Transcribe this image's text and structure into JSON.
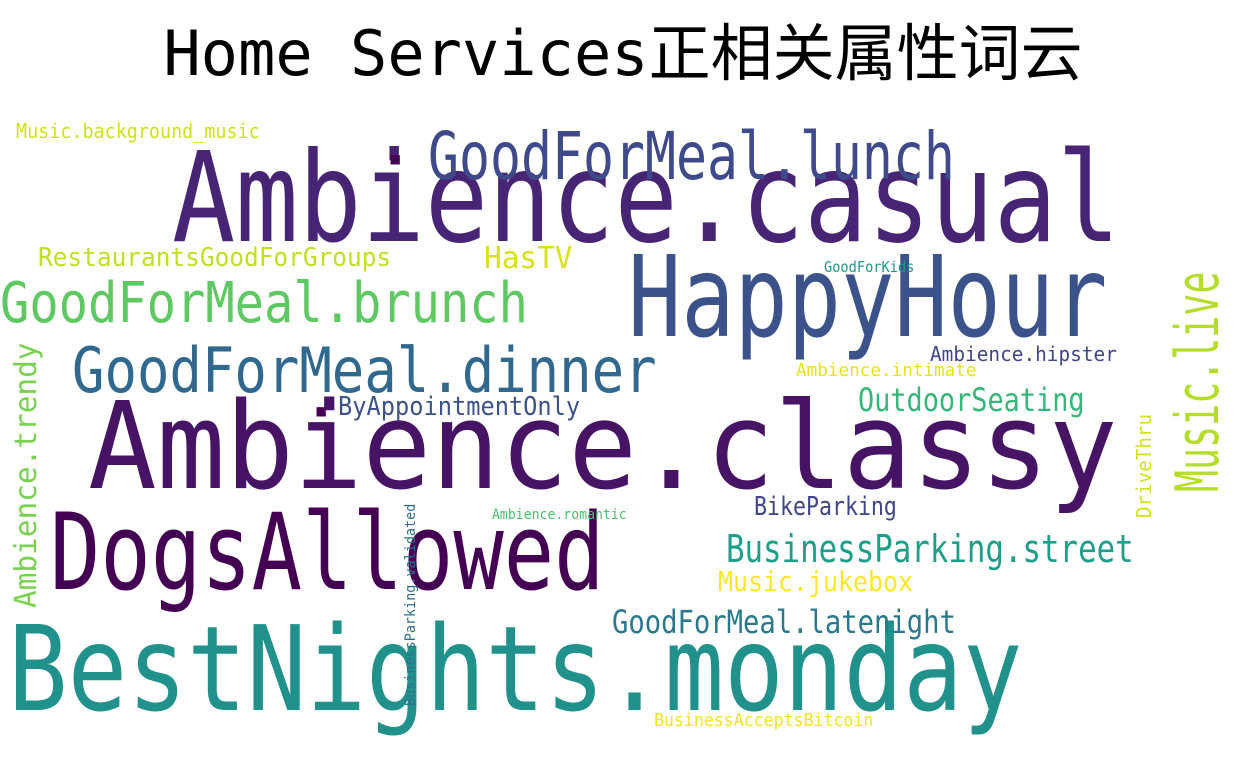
{
  "title": "Home Services正相关属性词云",
  "words": [
    {
      "text": "Ambience.casual",
      "color": "#482475",
      "vertical": false
    },
    {
      "text": "Ambience.classy",
      "color": "#471365",
      "vertical": false
    },
    {
      "text": "BestNights.monday",
      "color": "#21918c",
      "vertical": false
    },
    {
      "text": "HappyHour",
      "color": "#3b528b",
      "vertical": false
    },
    {
      "text": "DogsAllowed",
      "color": "#440154",
      "vertical": false
    },
    {
      "text": "GoodForMeal.lunch",
      "color": "#3e4a89",
      "vertical": false
    },
    {
      "text": "GoodForMeal.brunch",
      "color": "#5ec962",
      "vertical": false
    },
    {
      "text": "GoodForMeal.dinner",
      "color": "#31688e",
      "vertical": false
    },
    {
      "text": "Music.live",
      "color": "#b5de2b",
      "vertical": true
    },
    {
      "text": "BusinessParking.street",
      "color": "#1f9e89",
      "vertical": false
    },
    {
      "text": "GoodForMeal.latenight",
      "color": "#2a788e",
      "vertical": false
    },
    {
      "text": "OutdoorSeating",
      "color": "#35b779",
      "vertical": false
    },
    {
      "text": "Ambience.trendy",
      "color": "#7ad151",
      "vertical": true
    },
    {
      "text": "RestaurantsGoodForGroups",
      "color": "#c2df23",
      "vertical": false
    },
    {
      "text": "ByAppointmentOnly",
      "color": "#3b528b",
      "vertical": false
    },
    {
      "text": "Music.jukebox",
      "color": "#fde725",
      "vertical": false
    },
    {
      "text": "BikeParking",
      "color": "#414487",
      "vertical": false
    },
    {
      "text": "HasTV",
      "color": "#d8e219",
      "vertical": false
    },
    {
      "text": "Music.background_music",
      "color": "#d0e11c",
      "vertical": false
    },
    {
      "text": "Ambience.hipster",
      "color": "#404688",
      "vertical": false
    },
    {
      "text": "Ambience.intimate",
      "color": "#e5e419",
      "vertical": false
    },
    {
      "text": "DriveThru",
      "color": "#d2e21b",
      "vertical": true
    },
    {
      "text": "GoodForKids",
      "color": "#1f968b",
      "vertical": false
    },
    {
      "text": "Ambience.romantic",
      "color": "#4ac16d",
      "vertical": false
    },
    {
      "text": "BusinessParking.validated",
      "color": "#2c728e",
      "vertical": true
    },
    {
      "text": "BusinessAcceptsBitcoin",
      "color": "#f1e51d",
      "vertical": false
    },
    {
      "text": "▪",
      "color": "#440154",
      "vertical": false
    },
    {
      "text": "▪",
      "color": "#440154",
      "vertical": false
    }
  ]
}
